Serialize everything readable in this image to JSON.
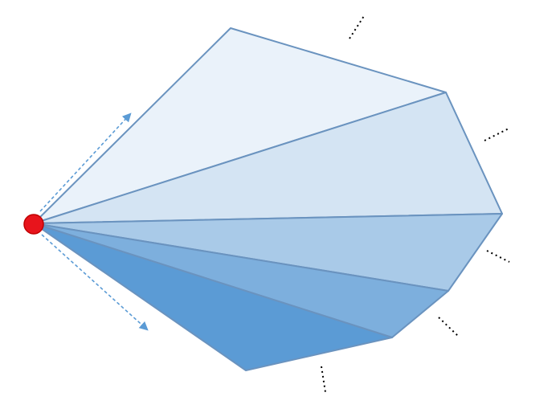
{
  "diagram": {
    "kind": "fan of triangular segments radiating from a single apex point",
    "apex": {
      "color": "#e8141c",
      "stroke": "#c00000"
    },
    "outline_color": "#6a93bf",
    "segments": [
      {
        "fill": "#eaf2fa"
      },
      {
        "fill": "#d4e4f3"
      },
      {
        "fill": "#a9cae8"
      },
      {
        "fill": "#7dafdd"
      },
      {
        "fill": "#5b9bd5"
      }
    ],
    "arrows": [
      {
        "direction": "upper-right",
        "style": "dashed",
        "color": "#5b9bd5"
      },
      {
        "direction": "lower-right",
        "style": "dashed",
        "color": "#5b9bd5"
      }
    ],
    "continuation_marks": {
      "count": 5,
      "style": "dotted",
      "color": "#000000"
    }
  }
}
